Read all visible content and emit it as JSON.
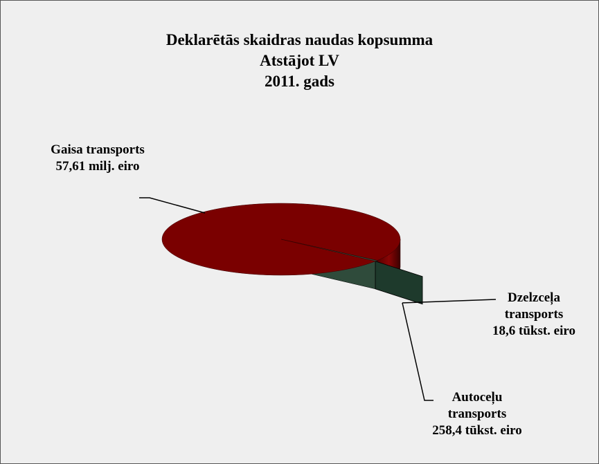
{
  "chart_data": {
    "type": "pie3d",
    "title": [
      "Deklarētās skaidras naudas kopsumma",
      "Atstājot LV",
      "2011. gads"
    ],
    "categories": [
      "Gaisa transports",
      "Dzelzceļa transports",
      "Autoceļu transports"
    ],
    "values": [
      57610000,
      18600,
      258400
    ],
    "value_labels": [
      "57,61 milj. eiro",
      "18,6 tūkst. eiro",
      "258,4 tūkst. eiro"
    ],
    "colors": [
      "#7a0000",
      "#1e3a2c",
      "#2f4b3b"
    ]
  }
}
